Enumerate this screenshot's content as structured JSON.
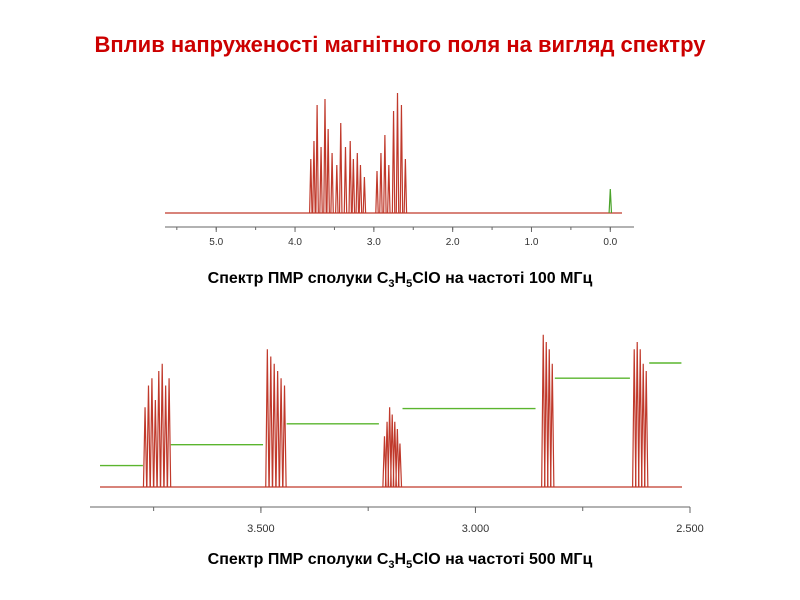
{
  "title": "Вплив напруженості магнітного поля на вигляд спектру",
  "captions": [
    {
      "prefix": "Спектр ПМР сполуки C",
      "s1": "3",
      "mid1": "H",
      "s2": "5",
      "suffix": "ClO на частоті 100 МГц"
    },
    {
      "prefix": "Спектр ПМР сполуки C",
      "s1": "3",
      "mid1": "H",
      "s2": "5",
      "suffix": "ClO на частоті 500 МГц"
    }
  ],
  "chart_data": [
    {
      "type": "line",
      "caption": "Спектр ПМР сполуки C3H5ClO на частоті 100 МГц",
      "xlabel": "",
      "ylabel": "",
      "x_reversed": true,
      "xlim": [
        5.65,
        -0.25
      ],
      "ticks": [
        5.0,
        4.0,
        3.0,
        2.0,
        1.0,
        0.0
      ],
      "tick_labels": [
        "5.0",
        "4.0",
        "3.0",
        "2.0",
        "1.0",
        "0.0"
      ],
      "line_color": "#c0392b",
      "peaks": [
        {
          "ppm": 3.8,
          "height": 0.45
        },
        {
          "ppm": 3.76,
          "height": 0.6
        },
        {
          "ppm": 3.72,
          "height": 0.9
        },
        {
          "ppm": 3.67,
          "height": 0.55
        },
        {
          "ppm": 3.62,
          "height": 0.95
        },
        {
          "ppm": 3.58,
          "height": 0.7
        },
        {
          "ppm": 3.53,
          "height": 0.5
        },
        {
          "ppm": 3.47,
          "height": 0.4
        },
        {
          "ppm": 3.42,
          "height": 0.75
        },
        {
          "ppm": 3.36,
          "height": 0.55
        },
        {
          "ppm": 3.3,
          "height": 0.6
        },
        {
          "ppm": 3.26,
          "height": 0.45
        },
        {
          "ppm": 3.21,
          "height": 0.5
        },
        {
          "ppm": 3.17,
          "height": 0.4
        },
        {
          "ppm": 3.12,
          "height": 0.3
        },
        {
          "ppm": 2.96,
          "height": 0.35
        },
        {
          "ppm": 2.91,
          "height": 0.5
        },
        {
          "ppm": 2.86,
          "height": 0.65
        },
        {
          "ppm": 2.81,
          "height": 0.4
        },
        {
          "ppm": 2.75,
          "height": 0.85
        },
        {
          "ppm": 2.7,
          "height": 1.0
        },
        {
          "ppm": 2.65,
          "height": 0.9
        },
        {
          "ppm": 2.6,
          "height": 0.45
        },
        {
          "ppm": 0.0,
          "height": 0.2,
          "color": "#4aa32a"
        }
      ]
    },
    {
      "type": "line",
      "caption": "Спектр ПМР сполуки C3H5ClO на частоті 500 МГц",
      "xlabel": "",
      "ylabel": "",
      "x_reversed": true,
      "xlim": [
        3.875,
        2.5
      ],
      "ticks": [
        3.5,
        3.0,
        2.5
      ],
      "tick_labels": [
        "3.500",
        "3.000",
        "2.500"
      ],
      "line_color": "#c0392b",
      "integral_color": "#5ab52e",
      "peaks": [
        {
          "ppm": 3.77,
          "height": 0.55
        },
        {
          "ppm": 3.762,
          "height": 0.7
        },
        {
          "ppm": 3.754,
          "height": 0.75
        },
        {
          "ppm": 3.746,
          "height": 0.6
        },
        {
          "ppm": 3.738,
          "height": 0.8
        },
        {
          "ppm": 3.73,
          "height": 0.85
        },
        {
          "ppm": 3.722,
          "height": 0.7
        },
        {
          "ppm": 3.714,
          "height": 0.75
        },
        {
          "ppm": 3.485,
          "height": 0.95
        },
        {
          "ppm": 3.477,
          "height": 0.9
        },
        {
          "ppm": 3.469,
          "height": 0.85
        },
        {
          "ppm": 3.461,
          "height": 0.8
        },
        {
          "ppm": 3.453,
          "height": 0.75
        },
        {
          "ppm": 3.445,
          "height": 0.7
        },
        {
          "ppm": 3.212,
          "height": 0.35
        },
        {
          "ppm": 3.206,
          "height": 0.45
        },
        {
          "ppm": 3.2,
          "height": 0.55
        },
        {
          "ppm": 3.194,
          "height": 0.5
        },
        {
          "ppm": 3.188,
          "height": 0.45
        },
        {
          "ppm": 3.182,
          "height": 0.4
        },
        {
          "ppm": 3.176,
          "height": 0.3
        },
        {
          "ppm": 2.842,
          "height": 1.05
        },
        {
          "ppm": 2.835,
          "height": 1.0
        },
        {
          "ppm": 2.828,
          "height": 0.95
        },
        {
          "ppm": 2.821,
          "height": 0.85
        },
        {
          "ppm": 2.63,
          "height": 0.95
        },
        {
          "ppm": 2.623,
          "height": 1.0
        },
        {
          "ppm": 2.616,
          "height": 0.95
        },
        {
          "ppm": 2.609,
          "height": 0.85
        },
        {
          "ppm": 2.602,
          "height": 0.8
        }
      ],
      "integral_steps": [
        {
          "from": 3.875,
          "to": 3.775,
          "level": 0.06
        },
        {
          "from": 3.71,
          "to": 3.495,
          "level": 0.17
        },
        {
          "from": 3.44,
          "to": 3.225,
          "level": 0.28
        },
        {
          "from": 3.17,
          "to": 2.86,
          "level": 0.36
        },
        {
          "from": 2.815,
          "to": 2.64,
          "level": 0.52
        },
        {
          "from": 2.595,
          "to": 2.52,
          "level": 0.6
        }
      ]
    }
  ]
}
